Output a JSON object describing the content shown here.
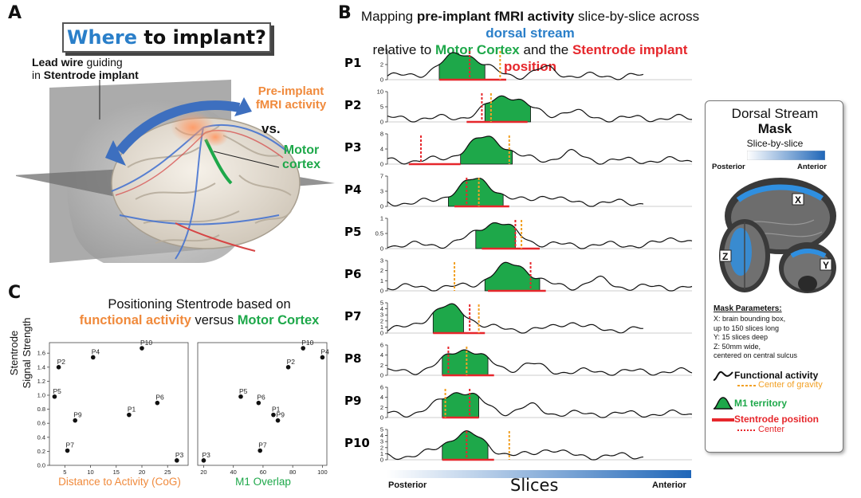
{
  "panelA": {
    "letter": "A",
    "title_where": "Where",
    "title_rest": " to implant?",
    "lead_wire_1": "Lead wire",
    "lead_wire_2": " guiding",
    "lead_wire_3": "in ",
    "lead_wire_4": "Stentrode implant",
    "preimplant_1": "Pre-implant",
    "preimplant_2": "fMRI activity",
    "vs": "vs.",
    "motor_1": "Motor",
    "motor_2": "cortex"
  },
  "panelB": {
    "letter": "B",
    "title_l1_a": "Mapping ",
    "title_l1_b": "pre-implant fMRI activity",
    "title_l1_c": " slice-by-slice across ",
    "title_l1_d": "dorsal stream",
    "title_l2_a": "relative to ",
    "title_l2_b": "Motor Cortex",
    "title_l2_c": " and the ",
    "title_l2_d": "Stentrode implant position",
    "x_axis_left": "Posterior",
    "x_axis_center": "Slices",
    "x_axis_right": "Anterior",
    "rows": [
      {
        "label": "P1",
        "ticks": [
          "4",
          "2",
          "0"
        ]
      },
      {
        "label": "P2",
        "ticks": [
          "10",
          "5",
          "0"
        ]
      },
      {
        "label": "P3",
        "ticks": [
          "8",
          "4",
          "0"
        ]
      },
      {
        "label": "P4",
        "ticks": [
          "7",
          "3",
          "0"
        ]
      },
      {
        "label": "P5",
        "ticks": [
          "1",
          "0.5",
          "0"
        ]
      },
      {
        "label": "P6",
        "ticks": [
          "3",
          "2",
          "1",
          "0"
        ]
      },
      {
        "label": "P7",
        "ticks": [
          "5",
          "4",
          "3",
          "2",
          "1",
          "0"
        ]
      },
      {
        "label": "P8",
        "ticks": [
          "6",
          "4",
          "2",
          "0"
        ]
      },
      {
        "label": "P9",
        "ticks": [
          "6",
          "4",
          "2",
          "0"
        ]
      },
      {
        "label": "P10",
        "ticks": [
          "5",
          "4",
          "3",
          "2",
          "1",
          "0"
        ]
      }
    ]
  },
  "legend": {
    "title": "Dorsal Stream",
    "mask": "Mask",
    "slice_by_slice": "Slice-by-slice",
    "posterior": "Posterior",
    "anterior": "Anterior",
    "x": "X",
    "y": "Y",
    "z": "Z",
    "params_title": "Mask Parameters:",
    "params": [
      "X: brain bounding box,",
      "up to 150 slices long",
      "Y: 15 slices deep",
      "Z: 50mm wide,",
      "centered on central sulcus"
    ],
    "functional_activity": "Functional activity",
    "center_of_gravity": "Center of gravity",
    "m1_territory": "M1 territory",
    "stentrode_position": "Stentrode position",
    "center": "Center",
    "colors": {
      "green": "#1ea84a",
      "red": "#e6272c",
      "orange": "#f2a024",
      "blue": "#2a7fc9"
    }
  },
  "panelC": {
    "letter": "C",
    "title_l1": "Positioning Stentrode based on",
    "title_l2_a": "functional activity",
    "title_l2_b": " versus ",
    "title_l2_c": "Motor Cortex",
    "y_label_1": "Stentrode",
    "y_label_2": "Signal Strength",
    "x_label_left": "Distance to Activity (CoG)",
    "x_label_right": "M1 Overlap"
  },
  "chart_data": [
    {
      "type": "scatter",
      "xlabel": "Distance to Activity (CoG)",
      "ylabel": "Stentrode Signal Strength",
      "xlim": [
        2,
        29
      ],
      "ylim": [
        0,
        1.75
      ],
      "xticks": [
        "5",
        "10",
        "15",
        "20",
        "25"
      ],
      "yticks": [
        "0.0",
        "0.2",
        "0.4",
        "0.6",
        "0.8",
        "1.0",
        "1.2",
        "1.4",
        "1.6"
      ],
      "points": [
        {
          "label": "P1",
          "x": 17.5,
          "y": 0.72
        },
        {
          "label": "P2",
          "x": 3.8,
          "y": 1.4
        },
        {
          "label": "P3",
          "x": 26.8,
          "y": 0.07
        },
        {
          "label": "P4",
          "x": 10.5,
          "y": 1.54
        },
        {
          "label": "P5",
          "x": 3.0,
          "y": 0.98
        },
        {
          "label": "P6",
          "x": 23.0,
          "y": 0.89
        },
        {
          "label": "P7",
          "x": 5.5,
          "y": 0.21
        },
        {
          "label": "P9",
          "x": 7.0,
          "y": 0.64
        },
        {
          "label": "P10",
          "x": 20.0,
          "y": 1.67
        }
      ]
    },
    {
      "type": "scatter",
      "xlabel": "M1 Overlap",
      "xlim": [
        16,
        103
      ],
      "ylim": [
        0,
        1.75
      ],
      "xticks": [
        "20",
        "40",
        "60",
        "80",
        "100"
      ],
      "points": [
        {
          "label": "P1",
          "x": 67,
          "y": 0.72
        },
        {
          "label": "P2",
          "x": 77,
          "y": 1.4
        },
        {
          "label": "P3",
          "x": 20,
          "y": 0.07
        },
        {
          "label": "P4",
          "x": 100,
          "y": 1.54
        },
        {
          "label": "P5",
          "x": 45,
          "y": 0.98
        },
        {
          "label": "P6",
          "x": 57,
          "y": 0.89
        },
        {
          "label": "P7",
          "x": 58,
          "y": 0.21
        },
        {
          "label": "P9",
          "x": 70,
          "y": 0.64
        },
        {
          "label": "P10",
          "x": 87,
          "y": 1.67
        }
      ]
    }
  ]
}
